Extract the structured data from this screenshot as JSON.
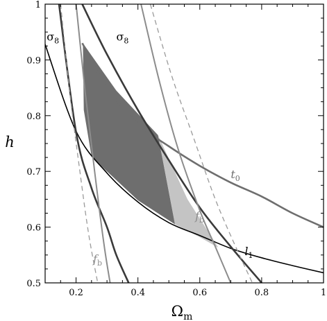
{
  "chart_data": {
    "type": "line",
    "title": "",
    "xlabel": "Ω",
    "xlabel_sub": "m",
    "ylabel": "h",
    "xlim": [
      0.1,
      1.0
    ],
    "ylim": [
      0.5,
      1.0
    ],
    "xticks": [
      0.2,
      0.4,
      0.6,
      0.8,
      1.0
    ],
    "xtick_labels": [
      "0.2",
      "0.4",
      "0.6",
      "0.8",
      "1"
    ],
    "yticks": [
      0.5,
      0.6,
      0.7,
      0.8,
      0.9,
      1.0
    ],
    "ytick_labels": [
      "0.5",
      "0.6",
      "0.7",
      "0.8",
      "0.9",
      "1"
    ],
    "grid": false,
    "colors": {
      "l1": "#000000",
      "sigma8": "#3a3a3a",
      "t0": "#6e6e6e",
      "fb": "#8c8c8c",
      "fb_dashed": "#9a9a9a",
      "region_dark": "#6e6e6e",
      "region_light": "#c4c4c4"
    },
    "curves": [
      {
        "id": "l1-curve",
        "x": [
          0.1,
          0.2,
          0.3,
          0.4,
          0.5,
          0.6,
          0.7,
          0.8,
          0.9,
          1.0
        ],
        "y": [
          0.928,
          0.772,
          0.697,
          0.645,
          0.608,
          0.585,
          0.562,
          0.545,
          0.531,
          0.518
        ]
      },
      {
        "id": "t0-curve",
        "x": [
          0.22,
          0.3,
          0.4,
          0.5,
          0.6,
          0.7,
          0.8,
          0.9,
          1.0
        ],
        "y": [
          0.93,
          0.85,
          0.785,
          0.745,
          0.71,
          0.68,
          0.655,
          0.625,
          0.6
        ]
      },
      {
        "id": "sigma8-curve-left",
        "x": [
          0.145,
          0.2,
          0.25,
          0.3,
          0.33,
          0.37
        ],
        "y": [
          1.0,
          0.77,
          0.67,
          0.6,
          0.55,
          0.5
        ]
      },
      {
        "id": "sigma8-curve-right",
        "x": [
          0.22,
          0.3,
          0.4,
          0.5,
          0.6,
          0.7,
          0.8
        ],
        "y": [
          1.0,
          0.91,
          0.81,
          0.72,
          0.635,
          0.565,
          0.5
        ]
      },
      {
        "id": "fb-curve-left",
        "x": [
          0.2,
          0.23,
          0.26,
          0.29,
          0.31
        ],
        "y": [
          1.0,
          0.84,
          0.7,
          0.57,
          0.5
        ]
      },
      {
        "id": "fb-curve-right",
        "x": [
          0.41,
          0.47,
          0.53,
          0.6,
          0.65,
          0.7
        ],
        "y": [
          1.0,
          0.86,
          0.74,
          0.63,
          0.565,
          0.5
        ]
      },
      {
        "id": "fb-dashed-left",
        "x": [
          0.15,
          0.18,
          0.21,
          0.24,
          0.27
        ],
        "y": [
          1.0,
          0.84,
          0.71,
          0.59,
          0.5
        ]
      },
      {
        "id": "fb-dashed-right",
        "x": [
          0.44,
          0.51,
          0.58,
          0.65,
          0.72,
          0.77
        ],
        "y": [
          1.0,
          0.87,
          0.76,
          0.65,
          0.56,
          0.5
        ]
      }
    ],
    "regions": [
      {
        "id": "dark-region",
        "x": [
          0.222,
          0.33,
          0.465,
          0.52,
          0.4,
          0.3,
          0.25,
          0.225
        ],
        "y": [
          0.93,
          0.845,
          0.765,
          0.605,
          0.648,
          0.7,
          0.727,
          0.81
        ]
      },
      {
        "id": "light-region",
        "x": [
          0.465,
          0.52,
          0.6,
          0.66,
          0.56
        ],
        "y": [
          0.765,
          0.605,
          0.582,
          0.563,
          0.65
        ]
      }
    ],
    "annotations": [
      {
        "id": "label-sigma8-left",
        "text": "σ",
        "sub": "8",
        "x": 0.105,
        "y": 0.935,
        "color": "#000000",
        "italic": false
      },
      {
        "id": "label-sigma8-top",
        "text": "σ",
        "sub": "8",
        "x": 0.33,
        "y": 0.935,
        "color": "#000000",
        "italic": false
      },
      {
        "id": "label-t0",
        "text": "t",
        "sub": "0",
        "x": 0.7,
        "y": 0.688,
        "color": "#6e6e6e",
        "italic": true
      },
      {
        "id": "label-fb-right",
        "text": "f",
        "sub": "b",
        "x": 0.585,
        "y": 0.613,
        "color": "#8c8c8c",
        "italic": true
      },
      {
        "id": "label-l1",
        "text": "l",
        "sub": "1",
        "x": 0.745,
        "y": 0.55,
        "color": "#000000",
        "italic": true
      },
      {
        "id": "label-fb-left",
        "text": "f",
        "sub": "b",
        "x": 0.255,
        "y": 0.536,
        "color": "#8c8c8c",
        "italic": true
      }
    ]
  }
}
